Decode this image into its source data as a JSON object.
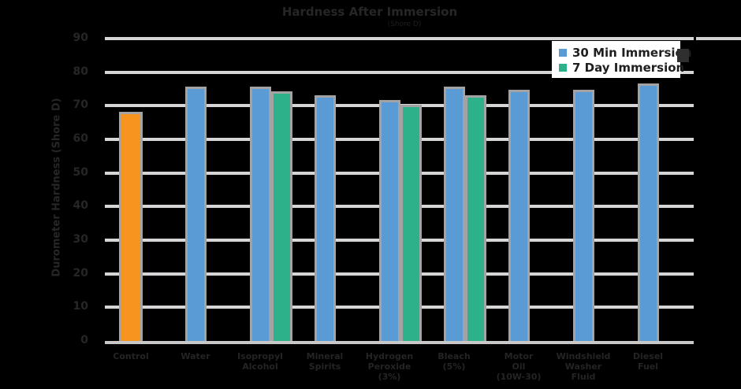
{
  "chart_data": {
    "type": "bar",
    "title": "Hardness After Immersion",
    "subtitle": "(Shore D)",
    "ylabel": "Durometer Hardness (Shore D)",
    "xlabel": "",
    "ylim": [
      0,
      90
    ],
    "y_ticks": [
      0,
      10,
      20,
      30,
      40,
      50,
      60,
      70,
      80,
      90
    ],
    "grid": "horizontal",
    "legend_position": "top-right",
    "categories": [
      "Control",
      "Water",
      "Isopropyl\nAlcohol",
      "Mineral\nSpirits",
      "Hydrogen\nPeroxide\n(3%)",
      "Bleach\n(5%)",
      "Motor\nOil\n(10W-30)",
      "Windshield\nWasher\nFluid",
      "Diesel\nFuel"
    ],
    "series": [
      {
        "name": "Control",
        "in_legend": false,
        "color": "#F79420",
        "values": [
          67.5,
          null,
          null,
          null,
          null,
          null,
          null,
          null,
          null
        ]
      },
      {
        "name": "30 Min Immersion",
        "in_legend": true,
        "color": "#5B9BD5",
        "values": [
          null,
          75,
          75,
          72.5,
          71,
          75,
          74,
          74,
          76
        ]
      },
      {
        "name": "7 Day Immersion",
        "in_legend": true,
        "color": "#2DB18A",
        "values": [
          null,
          null,
          73.5,
          null,
          69.5,
          72.5,
          null,
          null,
          null
        ]
      }
    ]
  },
  "legend": {
    "items": [
      {
        "label": "30 Min Immersion",
        "color": "#5B9BD5"
      },
      {
        "label": "7 Day Immersion",
        "color": "#2DB18A"
      }
    ]
  },
  "colors": {
    "background": "#000000",
    "gridline": "#D6D6D6",
    "axis_line": "#C8C8C8",
    "bar_border": "#A3A3A3",
    "text_dark": "#262626",
    "legend_background": "#FFFFFF"
  }
}
